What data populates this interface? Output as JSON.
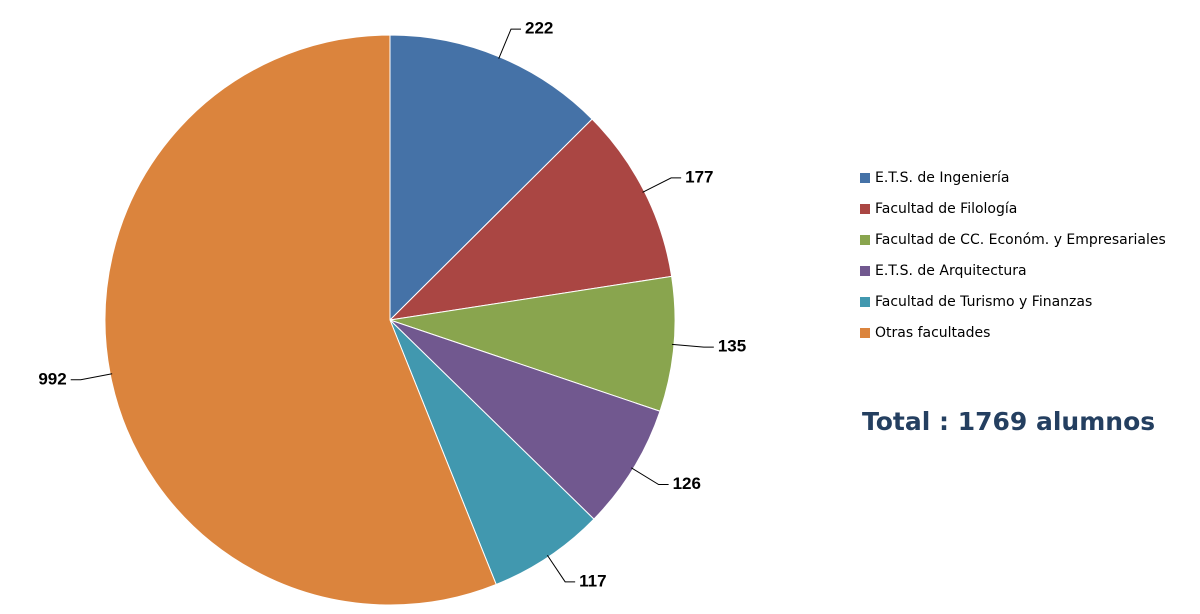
{
  "chart_data": {
    "type": "pie",
    "categories": [
      "E.T.S. de Ingeniería",
      "Facultad de Filología",
      "Facultad de CC. Económ. y Empresariales",
      "E.T.S. de Arquitectura",
      "Facultad de Turismo y Finanzas",
      "Otras facultades"
    ],
    "values": [
      222,
      177,
      135,
      126,
      117,
      992
    ],
    "colors": [
      "#4572a7",
      "#aa4643",
      "#89a54e",
      "#71588f",
      "#4198af",
      "#db843d"
    ],
    "annotation": "Total : 1769 alumnos"
  }
}
